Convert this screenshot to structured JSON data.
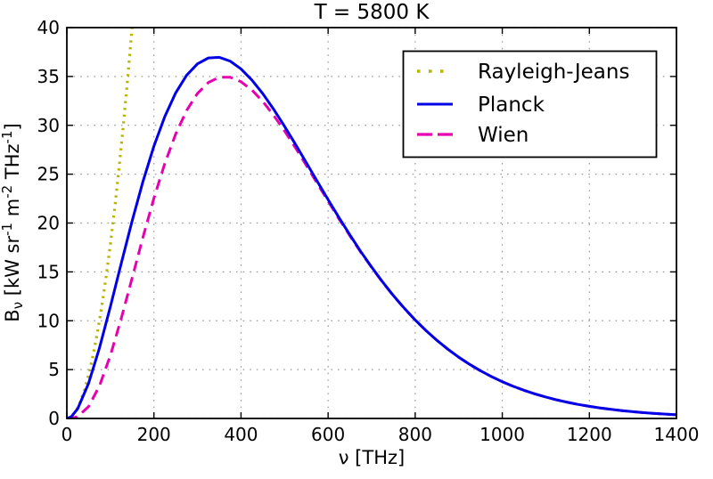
{
  "chart_data": {
    "type": "line",
    "title": "T = 5800 K",
    "xlabel": "ν [THz]",
    "ylabel": "Bν [kW sr⁻¹ m⁻² THz⁻¹]",
    "ylabel_parts": [
      {
        "t": "B",
        "v": "n"
      },
      {
        "t": "ν",
        "v": "sub"
      },
      {
        "t": " [kW sr",
        "v": "n"
      },
      {
        "t": "-1",
        "v": "sup"
      },
      {
        "t": " m",
        "v": "n"
      },
      {
        "t": "-2",
        "v": "sup"
      },
      {
        "t": " THz",
        "v": "n"
      },
      {
        "t": "-1",
        "v": "sup"
      },
      {
        "t": "]",
        "v": "n"
      }
    ],
    "xlim": [
      0,
      1400
    ],
    "ylim": [
      0,
      40
    ],
    "xticks": [
      0,
      200,
      400,
      600,
      800,
      1000,
      1200,
      1400
    ],
    "yticks": [
      0,
      5,
      10,
      15,
      20,
      25,
      30,
      35,
      40
    ],
    "grid": true,
    "grid_style": "dotted",
    "legend_position": "upper right",
    "series": [
      {
        "name": "Rayleigh-Jeans",
        "color": "#b6b500",
        "style": "dotted",
        "zorder": 1,
        "x": [
          0,
          10,
          20,
          30,
          40,
          50,
          60,
          70,
          80,
          90,
          100,
          110,
          120,
          130,
          140,
          150,
          155
        ],
        "y": [
          0,
          0.18,
          0.71,
          1.6,
          2.85,
          4.46,
          6.42,
          8.73,
          11.41,
          14.43,
          17.82,
          21.56,
          25.66,
          30.12,
          34.93,
          40.1,
          42.83
        ]
      },
      {
        "name": "Planck",
        "color": "#0000e6",
        "style": "solid",
        "zorder": 3,
        "x": [
          0,
          10,
          25,
          50,
          75,
          100,
          125,
          150,
          175,
          200,
          225,
          250,
          275,
          300,
          325,
          350,
          375,
          400,
          425,
          450,
          475,
          500,
          525,
          550,
          575,
          600,
          625,
          650,
          675,
          700,
          725,
          750,
          775,
          800,
          825,
          850,
          875,
          900,
          925,
          950,
          975,
          1000,
          1025,
          1050,
          1075,
          1100,
          1125,
          1150,
          1175,
          1200,
          1225,
          1250,
          1275,
          1300,
          1325,
          1350,
          1375,
          1400
        ],
        "y": [
          0,
          0.17,
          1.0,
          3.6,
          7.23,
          11.45,
          15.88,
          20.23,
          24.28,
          27.87,
          30.9,
          33.32,
          35.12,
          36.29,
          36.89,
          36.96,
          36.57,
          35.77,
          34.63,
          33.24,
          31.64,
          29.89,
          28.06,
          26.17,
          24.27,
          22.39,
          20.55,
          18.79,
          17.08,
          15.49,
          13.98,
          12.57,
          11.28,
          10.08,
          8.99,
          7.99,
          7.09,
          6.27,
          5.54,
          4.88,
          4.29,
          3.76,
          3.29,
          2.88,
          2.51,
          2.19,
          1.9,
          1.65,
          1.43,
          1.24,
          1.07,
          0.93,
          0.8,
          0.69,
          0.59,
          0.51,
          0.44,
          0.38
        ]
      },
      {
        "name": "Wien",
        "color": "#e600b0",
        "style": "dashed",
        "zorder": 2,
        "x": [
          0,
          10,
          25,
          50,
          75,
          100,
          125,
          150,
          175,
          200,
          225,
          250,
          275,
          300,
          325,
          350,
          375,
          400,
          425,
          450,
          475,
          500,
          525,
          550,
          575,
          600,
          625,
          650,
          675,
          700,
          725,
          750,
          775,
          800,
          825,
          850,
          875,
          900,
          925,
          950,
          975,
          1000,
          1025,
          1050,
          1075,
          1100,
          1125,
          1150,
          1175,
          1200,
          1225,
          1250,
          1275,
          1300,
          1325,
          1350,
          1375,
          1400
        ],
        "y": [
          0,
          0.01,
          0.19,
          1.22,
          3.34,
          6.45,
          10.24,
          14.38,
          18.57,
          22.54,
          26.1,
          29.11,
          31.51,
          33.26,
          34.38,
          34.92,
          34.92,
          34.46,
          33.61,
          32.44,
          31.02,
          29.42,
          27.7,
          25.9,
          24.06,
          22.24,
          20.43,
          18.7,
          17.01,
          15.45,
          13.94,
          12.55,
          11.26,
          10.07,
          8.98,
          7.99,
          7.08,
          6.27,
          5.53,
          4.87,
          4.29,
          3.76,
          3.29,
          2.88,
          2.51,
          2.19,
          1.9,
          1.65,
          1.43,
          1.24,
          1.07,
          0.93,
          0.8,
          0.69,
          0.59,
          0.51,
          0.44,
          0.38
        ]
      }
    ]
  },
  "colors": {
    "frame": "#000000",
    "grid": "#999999",
    "background": "#ffffff"
  }
}
